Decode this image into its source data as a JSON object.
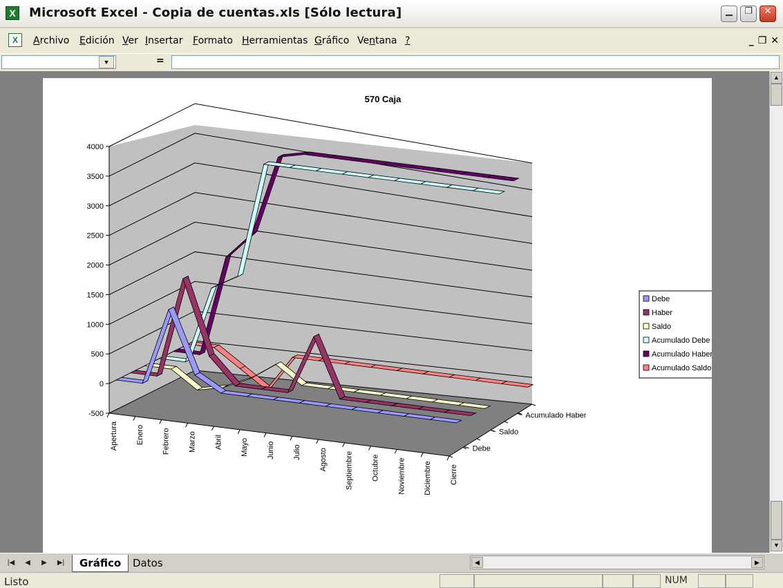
{
  "window": {
    "title": "Microsoft Excel - Copia de cuentas.xls  [Sólo lectura]"
  },
  "menu": [
    {
      "accel": "A",
      "rest": "rchivo"
    },
    {
      "accel": "E",
      "rest": "dición"
    },
    {
      "accel": "V",
      "rest": "er"
    },
    {
      "accel": "I",
      "rest": "nsertar"
    },
    {
      "accel": "F",
      "rest": "ormato"
    },
    {
      "accel": "H",
      "rest": "erramientas"
    },
    {
      "accel": "G",
      "rest": "ráfico"
    },
    {
      "accel": "",
      "pre": "Ve",
      "accel2": "n",
      "rest": "tana"
    },
    {
      "accel": "?",
      "rest": ""
    }
  ],
  "formula_bar": {
    "equals": "=",
    "name_box": "",
    "formula": ""
  },
  "sheets": {
    "tabs": [
      "Gráfico",
      "Datos"
    ],
    "active": "Gráfico"
  },
  "status": {
    "ready": "Listo",
    "num": "NUM"
  },
  "icons": {
    "app": "excel-icon",
    "doc": "workbook-icon"
  },
  "chart_data": {
    "type": "line",
    "title": "570 Caja",
    "categories": [
      "Apertura",
      "Enero",
      "Febrero",
      "Marzo",
      "Abril",
      "Mayo",
      "Junio",
      "Julio",
      "Agosto",
      "Septiembre",
      "Octubre",
      "Noviembre",
      "Diciembre",
      "Cierre"
    ],
    "depth_labels": [
      "Debe",
      "Saldo",
      "Acumulado Haber"
    ],
    "yticks": [
      "-500",
      "0",
      "500",
      "1000",
      "1500",
      "2000",
      "2500",
      "3000",
      "3500",
      "4000"
    ],
    "ylim": [
      -500,
      4000
    ],
    "legend_position": "right",
    "series": [
      {
        "name": "Debe",
        "color": "#9999ff",
        "values": [
          0,
          0,
          1300,
          250,
          0,
          0,
          0,
          0,
          0,
          0,
          0,
          0,
          0,
          0
        ]
      },
      {
        "name": "Haber",
        "color": "#993366",
        "values": [
          0,
          0,
          1700,
          450,
          0,
          0,
          0,
          1000,
          0,
          0,
          0,
          0,
          0,
          0
        ]
      },
      {
        "name": "Saldo",
        "color": "#ffffcc",
        "values": [
          0,
          0,
          -300,
          -200,
          0,
          300,
          0,
          0,
          0,
          0,
          0,
          0,
          0,
          0
        ]
      },
      {
        "name": "Acumulado Debe",
        "color": "#ccffff",
        "values": [
          0,
          0,
          1300,
          1550,
          3500,
          3500,
          3500,
          3500,
          3500,
          3500,
          3500,
          3500,
          3500,
          3500
        ]
      },
      {
        "name": "Acumulado Haber",
        "color": "#660066",
        "values": [
          0,
          0,
          1700,
          2150,
          3500,
          3600,
          3600,
          3600,
          3600,
          3600,
          3600,
          3600,
          3600,
          3600
        ]
      },
      {
        "name": "Acumulado Saldo",
        "color": "#ff8080",
        "values": [
          0,
          0,
          -300,
          -600,
          0,
          0,
          0,
          0,
          0,
          0,
          0,
          0,
          0,
          0
        ]
      }
    ]
  }
}
